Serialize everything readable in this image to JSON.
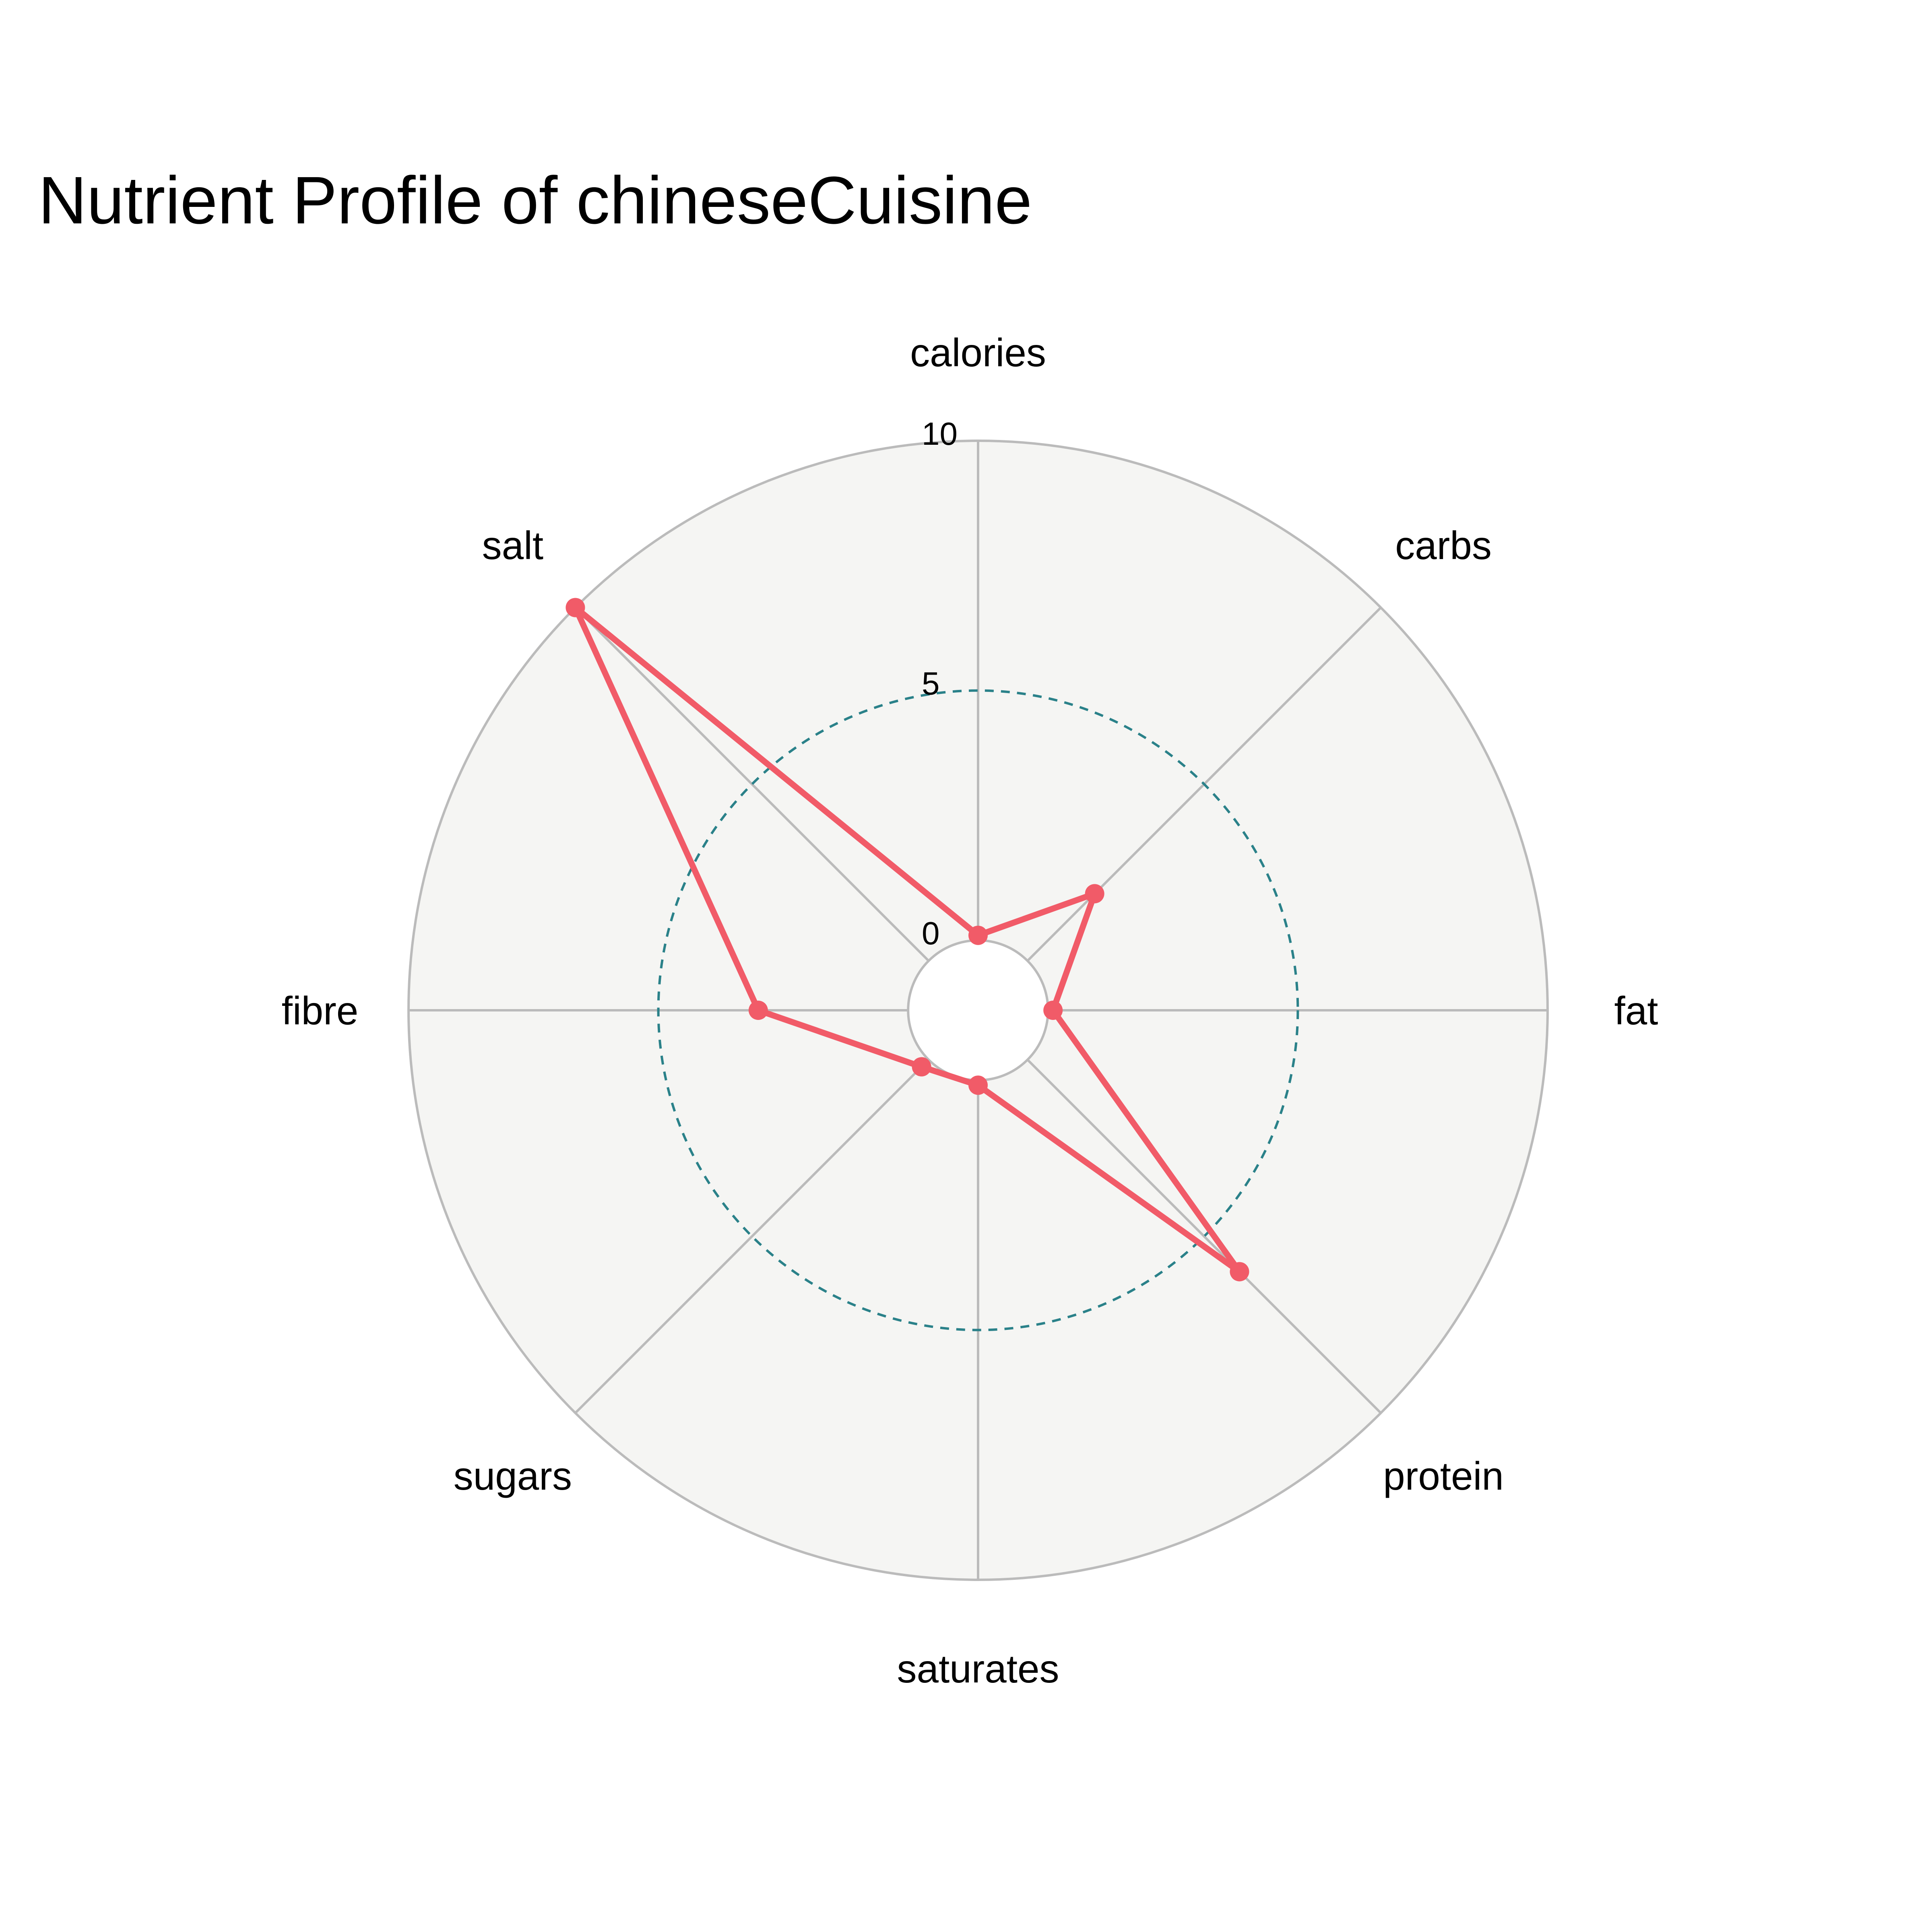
{
  "chart_data": {
    "type": "radar",
    "title": "Nutrient Profile of chineseCuisine",
    "categories": [
      "calories",
      "carbs",
      "fat",
      "protein",
      "saturates",
      "sugars",
      "fibre",
      "salt"
    ],
    "series": [
      {
        "values": [
          0.1,
          1.9,
          0.1,
          6.0,
          0.1,
          0.2,
          3.0,
          10.0
        ],
        "color": "#f15b68"
      }
    ],
    "r_range": [
      -1.4,
      10
    ],
    "r_ticks": [
      0,
      5,
      10
    ],
    "dashed_gridline_value": 5,
    "colors": {
      "background": "#f5f5f3",
      "grid": "#bbbbbb",
      "dashed_gridline": "#2a8189",
      "series_line": "#f15b68"
    }
  }
}
